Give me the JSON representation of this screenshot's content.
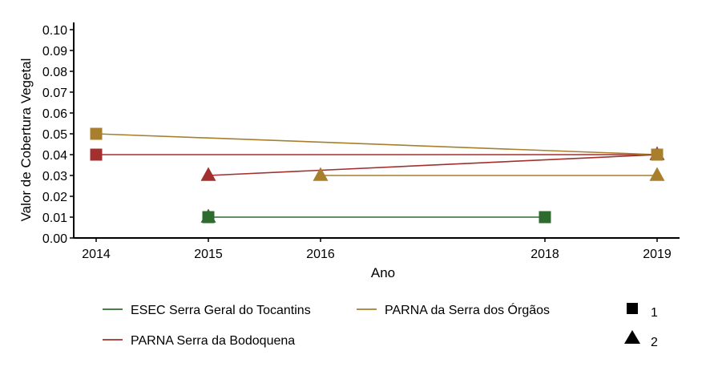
{
  "chart_data": {
    "type": "line",
    "xlabel": "Ano",
    "ylabel": "Valor de Cobertura Vegetal",
    "xlim": [
      2013.8,
      2019.2
    ],
    "ylim": [
      0.0,
      0.1
    ],
    "x_ticks": [
      "2014",
      "2015",
      "2016",
      "2018",
      "2019"
    ],
    "y_ticks": [
      "0.00",
      "0.01",
      "0.02",
      "0.03",
      "0.04",
      "0.05",
      "0.06",
      "0.07",
      "0.08",
      "0.09",
      "0.10"
    ],
    "grid": false,
    "legend_position": "bottom",
    "series": [
      {
        "name": "ESEC Serra Geral do Tocantins",
        "color": "#2e6b2e",
        "points": [
          {
            "x": 2015,
            "y": 0.01,
            "shape": "1"
          },
          {
            "x": 2015,
            "y": 0.01,
            "shape": "2"
          },
          {
            "x": 2018,
            "y": 0.01,
            "shape": "1"
          }
        ]
      },
      {
        "name": "PARNA Serra da Bodoquena",
        "color": "#a2302e",
        "points": [
          {
            "x": 2014,
            "y": 0.04,
            "shape": "1"
          },
          {
            "x": 2019,
            "y": 0.04,
            "shape": "1"
          },
          {
            "x": 2015,
            "y": 0.03,
            "shape": "2"
          },
          {
            "x": 2019,
            "y": 0.04,
            "shape": "2"
          }
        ]
      },
      {
        "name": "PARNA da Serra dos Órgãos",
        "color": "#a87f2c",
        "points": [
          {
            "x": 2014,
            "y": 0.05,
            "shape": "1"
          },
          {
            "x": 2019,
            "y": 0.04,
            "shape": "1"
          },
          {
            "x": 2016,
            "y": 0.03,
            "shape": "2"
          },
          {
            "x": 2019,
            "y": 0.03,
            "shape": "2"
          }
        ]
      }
    ],
    "segments": [
      {
        "series": 1,
        "from": [
          2014,
          0.04
        ],
        "to": [
          2019,
          0.04
        ]
      },
      {
        "series": 2,
        "from": [
          2014,
          0.05
        ],
        "to": [
          2019,
          0.04
        ]
      },
      {
        "series": 1,
        "from": [
          2015,
          0.03
        ],
        "to": [
          2019,
          0.04
        ]
      },
      {
        "series": 2,
        "from": [
          2016,
          0.03
        ],
        "to": [
          2019,
          0.03
        ]
      },
      {
        "series": 0,
        "from": [
          2015,
          0.01
        ],
        "to": [
          2018,
          0.01
        ]
      }
    ],
    "shape_legend": [
      {
        "label": "1",
        "shape": "square"
      },
      {
        "label": "2",
        "shape": "triangle"
      }
    ]
  }
}
